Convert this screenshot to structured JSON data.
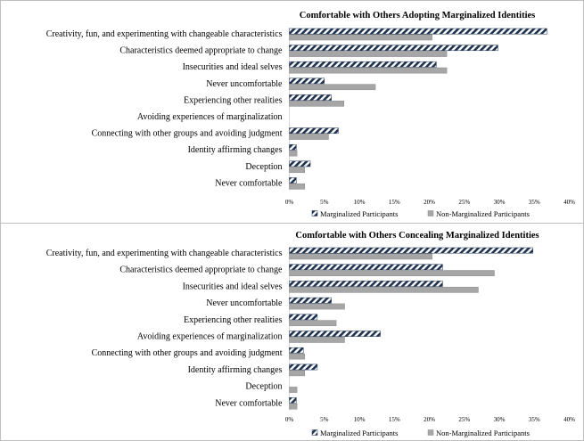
{
  "chart_data": [
    {
      "type": "bar",
      "orientation": "horizontal",
      "title": "Comfortable with Others Adopting Marginalized Identities",
      "categories": [
        "Creativity, fun, and experimenting with changeable characteristics",
        "Characteristics deemed appropriate to change",
        "Insecurities and ideal selves",
        "Never uncomfortable",
        "Experiencing other realities",
        "Avoiding experiences of marginalization",
        "Connecting with other groups and avoiding judgment",
        "Identity affirming changes",
        "Deception",
        "Never comfortable"
      ],
      "series": [
        {
          "name": "Marginalized Participants",
          "values": [
            36.8,
            29.8,
            21.0,
            5.0,
            6.0,
            0,
            7.0,
            1.0,
            3.0,
            1.0
          ]
        },
        {
          "name": "Non-Marginalized Participants",
          "values": [
            20.4,
            22.5,
            22.5,
            12.3,
            7.8,
            0,
            5.6,
            1.1,
            2.2,
            2.2
          ]
        }
      ],
      "x_ticks": [
        "0%",
        "5%",
        "10%",
        "15%",
        "20%",
        "25%",
        "30%",
        "35%",
        "40%"
      ],
      "xlim": [
        0,
        40
      ],
      "legend_position": "bottom",
      "grid": false,
      "colors": {
        "marginalized_stripe": "#1f3350",
        "non_marginalized": "#a6a6a6"
      }
    },
    {
      "type": "bar",
      "orientation": "horizontal",
      "title": "Comfortable with Others Concealing Marginalized Identities",
      "categories": [
        "Creativity, fun, and experimenting with changeable characteristics",
        "Characteristics deemed appropriate to change",
        "Insecurities and ideal selves",
        "Never uncomfortable",
        "Experiencing other realities",
        "Avoiding experiences of marginalization",
        "Connecting with other groups and avoiding judgment",
        "Identity affirming changes",
        "Deception",
        "Never comfortable"
      ],
      "series": [
        {
          "name": "Marginalized Participants",
          "values": [
            34.8,
            21.9,
            21.9,
            6.0,
            4.0,
            13.0,
            2.0,
            4.0,
            0,
            1.0
          ]
        },
        {
          "name": "Non-Marginalized Participants",
          "values": [
            20.4,
            29.3,
            27.0,
            7.9,
            6.7,
            7.9,
            2.2,
            2.2,
            1.1,
            1.1
          ]
        }
      ],
      "x_ticks": [
        "0%",
        "5%",
        "10%",
        "15%",
        "20%",
        "25%",
        "30%",
        "35%",
        "40%"
      ],
      "xlim": [
        0,
        40
      ],
      "legend_position": "bottom",
      "grid": false,
      "colors": {
        "marginalized_stripe": "#1f3350",
        "non_marginalized": "#a6a6a6"
      }
    }
  ]
}
